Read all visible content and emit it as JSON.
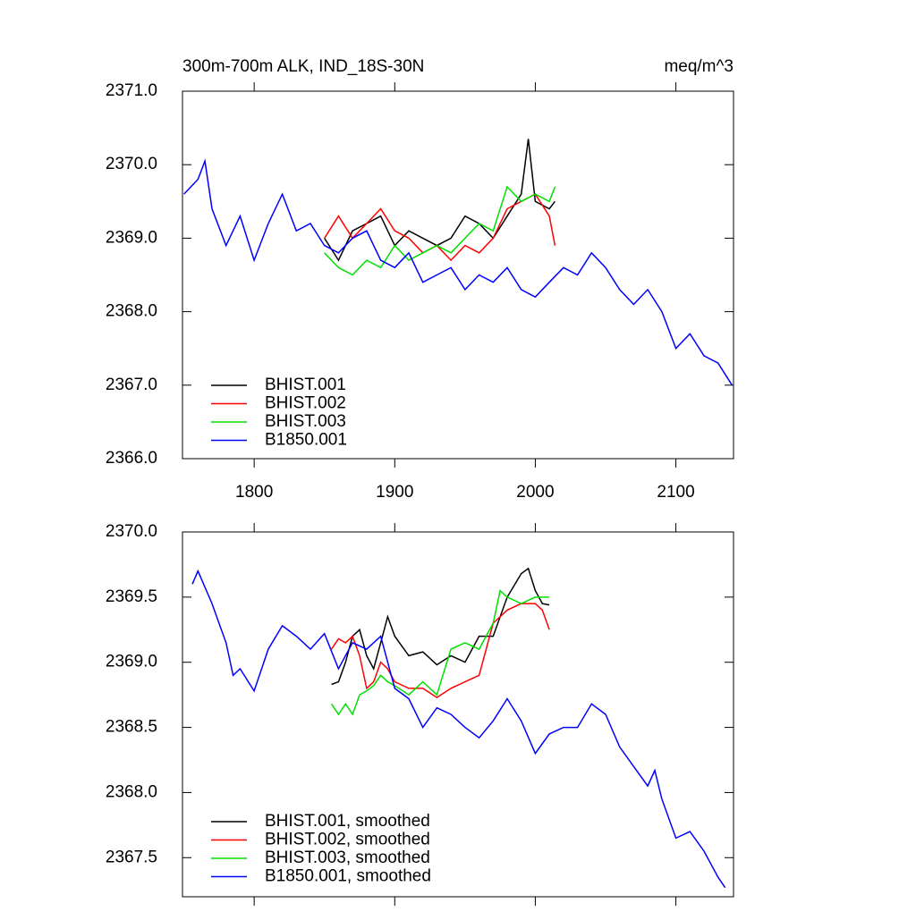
{
  "chart_data": [
    {
      "type": "line",
      "title": "300m-700m ALK, IND_18S-30N",
      "subtitle": "meq/m^3",
      "xlim": [
        1749,
        2141
      ],
      "xticks": [
        1800,
        1900,
        2000,
        2100
      ],
      "xtick_labels": true,
      "ylim": [
        2366,
        2371
      ],
      "yticks": [
        {
          "value": 2366,
          "label": "2366.0"
        },
        {
          "value": 2367,
          "label": "2367.0"
        },
        {
          "value": 2368,
          "label": "2368.0"
        },
        {
          "value": 2369,
          "label": "2369.0"
        },
        {
          "value": 2370,
          "label": "2370.0"
        },
        {
          "value": 2371,
          "label": "2371.0"
        }
      ],
      "legend": "lower left",
      "series": [
        {
          "name": "BHIST.001",
          "color": "#000000",
          "x": [
            1850,
            1860,
            1870,
            1880,
            1890,
            1900,
            1910,
            1920,
            1930,
            1940,
            1950,
            1960,
            1970,
            1980,
            1990,
            1995,
            2000,
            2010,
            2014
          ],
          "values": [
            2369.0,
            2368.7,
            2369.1,
            2369.2,
            2369.3,
            2368.9,
            2369.1,
            2369.0,
            2368.9,
            2369.0,
            2369.3,
            2369.2,
            2369.0,
            2369.3,
            2369.6,
            2370.35,
            2369.5,
            2369.4,
            2369.5
          ]
        },
        {
          "name": "BHIST.002",
          "color": "#ff0000",
          "x": [
            1850,
            1860,
            1870,
            1880,
            1890,
            1900,
            1910,
            1920,
            1930,
            1940,
            1950,
            1960,
            1970,
            1980,
            1990,
            2000,
            2010,
            2014
          ],
          "values": [
            2369.0,
            2369.3,
            2369.0,
            2369.2,
            2369.4,
            2369.1,
            2369.0,
            2368.8,
            2368.9,
            2368.7,
            2368.9,
            2368.8,
            2369.0,
            2369.4,
            2369.5,
            2369.6,
            2369.3,
            2368.9
          ]
        },
        {
          "name": "BHIST.003",
          "color": "#00e000",
          "x": [
            1850,
            1860,
            1870,
            1880,
            1890,
            1900,
            1910,
            1920,
            1930,
            1940,
            1950,
            1960,
            1970,
            1980,
            1990,
            2000,
            2010,
            2014
          ],
          "values": [
            2368.8,
            2368.6,
            2368.5,
            2368.7,
            2368.6,
            2368.9,
            2368.7,
            2368.8,
            2368.9,
            2368.8,
            2369.0,
            2369.2,
            2369.1,
            2369.7,
            2369.5,
            2369.6,
            2369.5,
            2369.7
          ]
        },
        {
          "name": "B1850.001",
          "color": "#0000ff",
          "x": [
            1750,
            1760,
            1765,
            1770,
            1780,
            1790,
            1800,
            1810,
            1820,
            1830,
            1840,
            1850,
            1860,
            1870,
            1880,
            1890,
            1900,
            1910,
            1920,
            1930,
            1940,
            1950,
            1960,
            1970,
            1980,
            1990,
            2000,
            2010,
            2020,
            2030,
            2040,
            2050,
            2060,
            2070,
            2080,
            2090,
            2100,
            2110,
            2120,
            2130,
            2140
          ],
          "values": [
            2369.6,
            2369.8,
            2370.05,
            2369.4,
            2368.9,
            2369.3,
            2368.7,
            2369.2,
            2369.6,
            2369.1,
            2369.2,
            2368.9,
            2368.8,
            2369.0,
            2369.1,
            2368.7,
            2368.6,
            2368.8,
            2368.4,
            2368.5,
            2368.6,
            2368.3,
            2368.5,
            2368.4,
            2368.6,
            2368.3,
            2368.2,
            2368.4,
            2368.6,
            2368.5,
            2368.8,
            2368.6,
            2368.3,
            2368.1,
            2368.3,
            2368.0,
            2367.5,
            2367.7,
            2367.4,
            2367.3,
            2367.0
          ]
        }
      ]
    },
    {
      "type": "line",
      "xlim": [
        1749,
        2141
      ],
      "xticks": [
        1800,
        1900,
        2000,
        2100
      ],
      "xtick_labels": false,
      "ylim": [
        2367.2,
        2370
      ],
      "yticks": [
        {
          "value": 2367.5,
          "label": "2367.5"
        },
        {
          "value": 2368,
          "label": "2368.0"
        },
        {
          "value": 2368.5,
          "label": "2368.5"
        },
        {
          "value": 2369,
          "label": "2369.0"
        },
        {
          "value": 2369.5,
          "label": "2369.5"
        },
        {
          "value": 2370,
          "label": "2370.0"
        }
      ],
      "legend": "lower left",
      "series": [
        {
          "name": "BHIST.001, smoothed",
          "color": "#000000",
          "x": [
            1855,
            1860,
            1865,
            1870,
            1875,
            1880,
            1885,
            1890,
            1895,
            1900,
            1910,
            1920,
            1930,
            1940,
            1950,
            1960,
            1970,
            1980,
            1990,
            1995,
            2000,
            2005,
            2010
          ],
          "values": [
            2368.83,
            2368.85,
            2369.0,
            2369.2,
            2369.25,
            2369.05,
            2368.95,
            2369.15,
            2369.35,
            2369.2,
            2369.05,
            2369.08,
            2368.98,
            2369.05,
            2369.0,
            2369.2,
            2369.2,
            2369.5,
            2369.68,
            2369.72,
            2369.55,
            2369.45,
            2369.44
          ]
        },
        {
          "name": "BHIST.002, smoothed",
          "color": "#ff0000",
          "x": [
            1855,
            1860,
            1865,
            1870,
            1875,
            1880,
            1885,
            1890,
            1895,
            1900,
            1910,
            1920,
            1930,
            1940,
            1950,
            1960,
            1970,
            1980,
            1990,
            2000,
            2005,
            2010
          ],
          "values": [
            2369.1,
            2369.18,
            2369.15,
            2369.2,
            2369.05,
            2368.8,
            2368.85,
            2369.0,
            2368.95,
            2368.85,
            2368.8,
            2368.8,
            2368.73,
            2368.8,
            2368.85,
            2368.9,
            2369.3,
            2369.4,
            2369.45,
            2369.45,
            2369.4,
            2369.25
          ]
        },
        {
          "name": "BHIST.003, smoothed",
          "color": "#00e000",
          "x": [
            1855,
            1860,
            1865,
            1870,
            1875,
            1880,
            1885,
            1890,
            1895,
            1900,
            1910,
            1920,
            1930,
            1940,
            1950,
            1960,
            1970,
            1975,
            1980,
            1990,
            2000,
            2010
          ],
          "values": [
            2368.68,
            2368.6,
            2368.68,
            2368.6,
            2368.75,
            2368.78,
            2368.82,
            2368.9,
            2368.85,
            2368.82,
            2368.75,
            2368.85,
            2368.75,
            2369.1,
            2369.15,
            2369.1,
            2369.3,
            2369.55,
            2369.5,
            2369.45,
            2369.5,
            2369.5
          ]
        },
        {
          "name": "B1850.001, smoothed",
          "color": "#0000ff",
          "x": [
            1756,
            1760,
            1770,
            1780,
            1785,
            1790,
            1800,
            1810,
            1820,
            1830,
            1840,
            1850,
            1860,
            1870,
            1880,
            1890,
            1900,
            1910,
            1920,
            1930,
            1940,
            1950,
            1960,
            1970,
            1980,
            1990,
            2000,
            2010,
            2020,
            2030,
            2040,
            2050,
            2060,
            2070,
            2080,
            2085,
            2090,
            2100,
            2110,
            2120,
            2130,
            2135
          ],
          "values": [
            2369.6,
            2369.7,
            2369.45,
            2369.15,
            2368.9,
            2368.95,
            2368.78,
            2369.1,
            2369.28,
            2369.2,
            2369.1,
            2369.22,
            2368.95,
            2369.15,
            2369.1,
            2369.2,
            2368.8,
            2368.72,
            2368.5,
            2368.65,
            2368.6,
            2368.5,
            2368.42,
            2368.55,
            2368.72,
            2368.55,
            2368.3,
            2368.45,
            2368.5,
            2368.5,
            2368.68,
            2368.6,
            2368.35,
            2368.2,
            2368.05,
            2368.17,
            2367.95,
            2367.65,
            2367.7,
            2367.55,
            2367.35,
            2367.27
          ]
        }
      ]
    }
  ]
}
